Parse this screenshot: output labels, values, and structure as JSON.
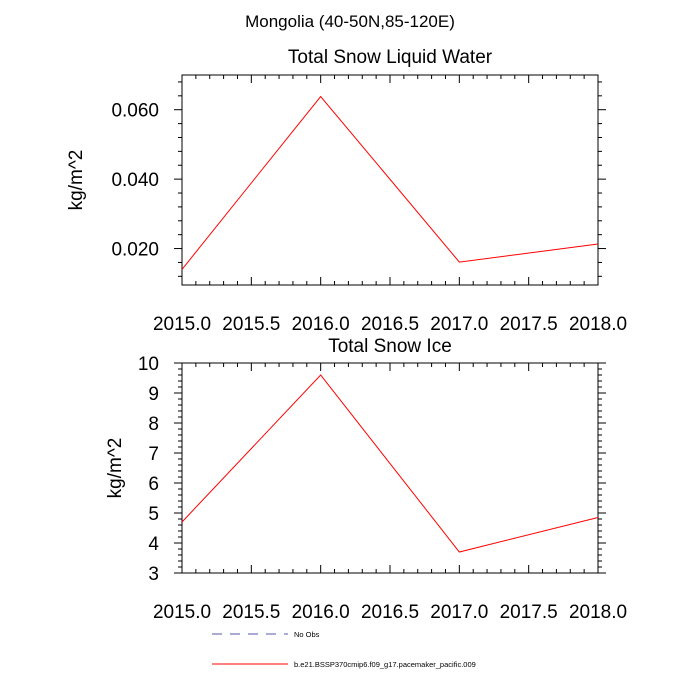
{
  "figure": {
    "main_title": "Mongolia (40-50N,85-120E)"
  },
  "chart_data": [
    {
      "type": "line",
      "title": "Total Snow Liquid Water",
      "xlabel": "",
      "ylabel": "kg/m^2",
      "xlim": [
        2015.0,
        2018.0
      ],
      "ylim": [
        0.0095,
        0.07
      ],
      "xticks": [
        2015.0,
        2015.5,
        2016.0,
        2016.5,
        2017.0,
        2017.5,
        2018.0
      ],
      "xtick_labels": [
        "2015.0",
        "2015.5",
        "2016.0",
        "2016.5",
        "2017.0",
        "2017.5",
        "2018.0"
      ],
      "yticks": [
        0.02,
        0.04,
        0.06
      ],
      "ytick_labels": [
        "0.020",
        "0.040",
        "0.060"
      ],
      "grid": false,
      "series": [
        {
          "name": "b.e21.BSSP370cmip6.f09_g17.pacemaker_pacific.009",
          "color": "#ff0000",
          "x": [
            2015.0,
            2016.0,
            2017.0,
            2018.0
          ],
          "y": [
            0.014,
            0.0638,
            0.0161,
            0.0213
          ]
        }
      ]
    },
    {
      "type": "line",
      "title": "Total Snow Ice",
      "xlabel": "",
      "ylabel": "kg/m^2",
      "xlim": [
        2015.0,
        2018.0
      ],
      "ylim": [
        3,
        10
      ],
      "xticks": [
        2015.0,
        2015.5,
        2016.0,
        2016.5,
        2017.0,
        2017.5,
        2018.0
      ],
      "xtick_labels": [
        "2015.0",
        "2015.5",
        "2016.0",
        "2016.5",
        "2017.0",
        "2017.5",
        "2018.0"
      ],
      "yticks": [
        3,
        4,
        5,
        6,
        7,
        8,
        9,
        10
      ],
      "ytick_labels": [
        "3",
        "4",
        "5",
        "6",
        "7",
        "8",
        "9",
        "10"
      ],
      "grid": false,
      "series": [
        {
          "name": "b.e21.BSSP370cmip6.f09_g17.pacemaker_pacific.009",
          "color": "#ff0000",
          "x": [
            2015.0,
            2016.0,
            2017.0,
            2018.0
          ],
          "y": [
            4.7,
            9.6,
            3.7,
            4.85
          ]
        }
      ]
    }
  ],
  "legend": {
    "placement": "bottom",
    "items": [
      {
        "label": "No Obs",
        "color": "#5555aa",
        "style": "dashed"
      },
      {
        "label": "b.e21.BSSP370cmip6.f09_g17.pacemaker_pacific.009",
        "color": "#ff0000",
        "style": "solid"
      }
    ]
  }
}
